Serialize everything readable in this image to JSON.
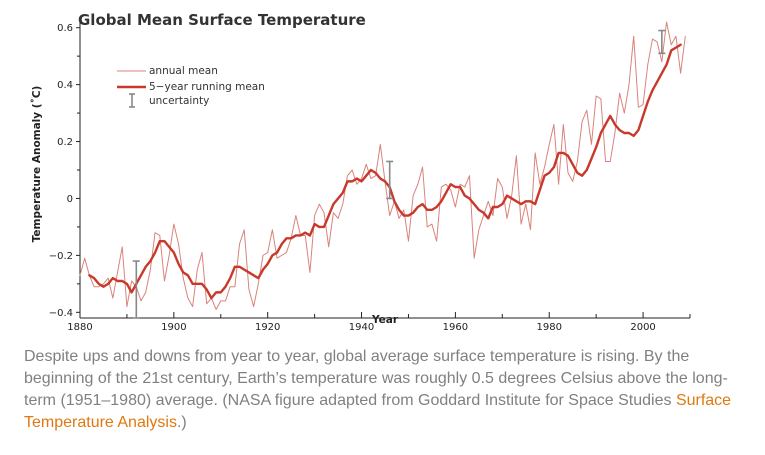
{
  "chart_data": {
    "type": "line",
    "title": "Global Mean Surface Temperature",
    "xlabel": "Year",
    "ylabel": "Temperature Anomaly (˚C)",
    "xlim": [
      1880,
      2010
    ],
    "ylim": [
      -0.42,
      0.62
    ],
    "x_ticks": [
      1880,
      1900,
      1920,
      1940,
      1960,
      1980,
      2000
    ],
    "y_ticks": [
      {
        "value": 0.6,
        "label": "0.6"
      },
      {
        "value": 0.4,
        "label": "0.4"
      },
      {
        "value": 0.2,
        "label": "0.2"
      },
      {
        "value": 0,
        "label": "0"
      },
      {
        "value": -0.2,
        "label": "−0.2"
      },
      {
        "value": -0.4,
        "label": "−0.4"
      }
    ],
    "legend": {
      "position": "top-left",
      "entries": [
        "annual mean",
        "5−year running mean",
        "uncertainty"
      ]
    },
    "colors": {
      "annual": "#d9837b",
      "running": "#c8392b",
      "uncertainty": "#888888",
      "axis": "#222222"
    },
    "series": [
      {
        "name": "annual mean",
        "x": [
          1880,
          1881,
          1882,
          1883,
          1884,
          1885,
          1886,
          1887,
          1888,
          1889,
          1890,
          1891,
          1892,
          1893,
          1894,
          1895,
          1896,
          1897,
          1898,
          1899,
          1900,
          1901,
          1902,
          1903,
          1904,
          1905,
          1906,
          1907,
          1908,
          1909,
          1910,
          1911,
          1912,
          1913,
          1914,
          1915,
          1916,
          1917,
          1918,
          1919,
          1920,
          1921,
          1922,
          1923,
          1924,
          1925,
          1926,
          1927,
          1928,
          1929,
          1930,
          1931,
          1932,
          1933,
          1934,
          1935,
          1936,
          1937,
          1938,
          1939,
          1940,
          1941,
          1942,
          1943,
          1944,
          1945,
          1946,
          1947,
          1948,
          1949,
          1950,
          1951,
          1952,
          1953,
          1954,
          1955,
          1956,
          1957,
          1958,
          1959,
          1960,
          1961,
          1962,
          1963,
          1964,
          1965,
          1966,
          1967,
          1968,
          1969,
          1970,
          1971,
          1972,
          1973,
          1974,
          1975,
          1976,
          1977,
          1978,
          1979,
          1980,
          1981,
          1982,
          1983,
          1984,
          1985,
          1986,
          1987,
          1988,
          1989,
          1990,
          1991,
          1992,
          1993,
          1994,
          1995,
          1996,
          1997,
          1998,
          1999,
          2000,
          2001,
          2002,
          2003,
          2004,
          2005,
          2006,
          2007,
          2008,
          2009
        ],
        "values": [
          -0.27,
          -0.21,
          -0.27,
          -0.31,
          -0.31,
          -0.3,
          -0.28,
          -0.35,
          -0.26,
          -0.17,
          -0.38,
          -0.29,
          -0.31,
          -0.36,
          -0.33,
          -0.25,
          -0.12,
          -0.13,
          -0.29,
          -0.2,
          -0.09,
          -0.16,
          -0.28,
          -0.35,
          -0.38,
          -0.25,
          -0.19,
          -0.37,
          -0.35,
          -0.39,
          -0.36,
          -0.36,
          -0.31,
          -0.31,
          -0.16,
          -0.11,
          -0.32,
          -0.38,
          -0.3,
          -0.2,
          -0.19,
          -0.11,
          -0.21,
          -0.2,
          -0.19,
          -0.14,
          -0.06,
          -0.13,
          -0.13,
          -0.26,
          -0.06,
          -0.02,
          -0.05,
          -0.17,
          -0.05,
          -0.07,
          -0.02,
          0.08,
          0.1,
          0.05,
          0.07,
          0.12,
          0.07,
          0.08,
          0.19,
          0.06,
          -0.06,
          -0.01,
          -0.07,
          -0.04,
          -0.15,
          0.01,
          0.05,
          0.11,
          -0.1,
          -0.09,
          -0.15,
          0.04,
          0.05,
          0.03,
          -0.03,
          0.05,
          0.04,
          0.08,
          -0.21,
          -0.11,
          -0.06,
          -0.01,
          -0.06,
          0.07,
          0.04,
          -0.07,
          0.01,
          0.15,
          -0.09,
          -0.02,
          -0.11,
          0.16,
          0.05,
          0.11,
          0.19,
          0.26,
          0.05,
          0.26,
          0.09,
          0.06,
          0.13,
          0.27,
          0.31,
          0.19,
          0.36,
          0.35,
          0.13,
          0.13,
          0.23,
          0.37,
          0.3,
          0.4,
          0.57,
          0.32,
          0.33,
          0.47,
          0.56,
          0.55,
          0.48,
          0.62,
          0.54,
          0.57,
          0.44,
          0.57
        ]
      },
      {
        "name": "5−year running mean",
        "x": [
          1882,
          1883,
          1884,
          1885,
          1886,
          1887,
          1888,
          1889,
          1890,
          1891,
          1892,
          1893,
          1894,
          1895,
          1896,
          1897,
          1898,
          1899,
          1900,
          1901,
          1902,
          1903,
          1904,
          1905,
          1906,
          1907,
          1908,
          1909,
          1910,
          1911,
          1912,
          1913,
          1914,
          1915,
          1916,
          1917,
          1918,
          1919,
          1920,
          1921,
          1922,
          1923,
          1924,
          1925,
          1926,
          1927,
          1928,
          1929,
          1930,
          1931,
          1932,
          1933,
          1934,
          1935,
          1936,
          1937,
          1938,
          1939,
          1940,
          1941,
          1942,
          1943,
          1944,
          1945,
          1946,
          1947,
          1948,
          1949,
          1950,
          1951,
          1952,
          1953,
          1954,
          1955,
          1956,
          1957,
          1958,
          1959,
          1960,
          1961,
          1962,
          1963,
          1964,
          1965,
          1966,
          1967,
          1968,
          1969,
          1970,
          1971,
          1972,
          1973,
          1974,
          1975,
          1976,
          1977,
          1978,
          1979,
          1980,
          1981,
          1982,
          1983,
          1984,
          1985,
          1986,
          1987,
          1988,
          1989,
          1990,
          1991,
          1992,
          1993,
          1994,
          1995,
          1996,
          1997,
          1998,
          1999,
          2000,
          2001,
          2002,
          2003,
          2004,
          2005,
          2006,
          2007,
          2008
        ],
        "values": [
          -0.27,
          -0.28,
          -0.3,
          -0.31,
          -0.3,
          -0.28,
          -0.29,
          -0.29,
          -0.3,
          -0.33,
          -0.3,
          -0.27,
          -0.24,
          -0.22,
          -0.19,
          -0.15,
          -0.15,
          -0.17,
          -0.19,
          -0.23,
          -0.26,
          -0.27,
          -0.3,
          -0.3,
          -0.3,
          -0.32,
          -0.35,
          -0.33,
          -0.33,
          -0.31,
          -0.28,
          -0.24,
          -0.24,
          -0.25,
          -0.26,
          -0.27,
          -0.28,
          -0.25,
          -0.23,
          -0.2,
          -0.19,
          -0.16,
          -0.14,
          -0.14,
          -0.13,
          -0.13,
          -0.12,
          -0.13,
          -0.09,
          -0.1,
          -0.1,
          -0.06,
          -0.02,
          -0.0,
          0.02,
          0.06,
          0.06,
          0.07,
          0.06,
          0.08,
          0.1,
          0.09,
          0.07,
          0.06,
          0.04,
          -0.01,
          -0.04,
          -0.06,
          -0.06,
          -0.05,
          -0.03,
          -0.02,
          -0.04,
          -0.04,
          -0.03,
          -0.01,
          0.02,
          0.05,
          0.04,
          0.04,
          0.01,
          -0.0,
          -0.02,
          -0.04,
          -0.05,
          -0.07,
          -0.03,
          -0.03,
          -0.02,
          0.01,
          0.0,
          -0.01,
          -0.02,
          -0.01,
          -0.01,
          -0.02,
          0.03,
          0.08,
          0.09,
          0.11,
          0.16,
          0.16,
          0.15,
          0.12,
          0.09,
          0.08,
          0.1,
          0.14,
          0.18,
          0.23,
          0.26,
          0.29,
          0.26,
          0.24,
          0.23,
          0.23,
          0.22,
          0.24,
          0.29,
          0.34,
          0.38,
          0.41,
          0.44,
          0.47,
          0.52,
          0.53,
          0.54
        ]
      }
    ],
    "uncertainty_bars": [
      {
        "year": 1892,
        "low": -0.42,
        "high": -0.22
      },
      {
        "year": 1946,
        "low": 0.0,
        "high": 0.13
      },
      {
        "year": 2004,
        "low": 0.51,
        "high": 0.59
      }
    ]
  },
  "caption": {
    "text": "Despite ups and downs from year to year, global average surface temperature is rising. By the beginning of the 21st century, Earth’s temperature was roughly 0.5 degrees Celsius above the long-term (1951–1980) average. (NASA figure adapted from Goddard Institute for Space Studies ",
    "link_text": "Surface Temperature Analysis",
    "after_link": ".)"
  }
}
